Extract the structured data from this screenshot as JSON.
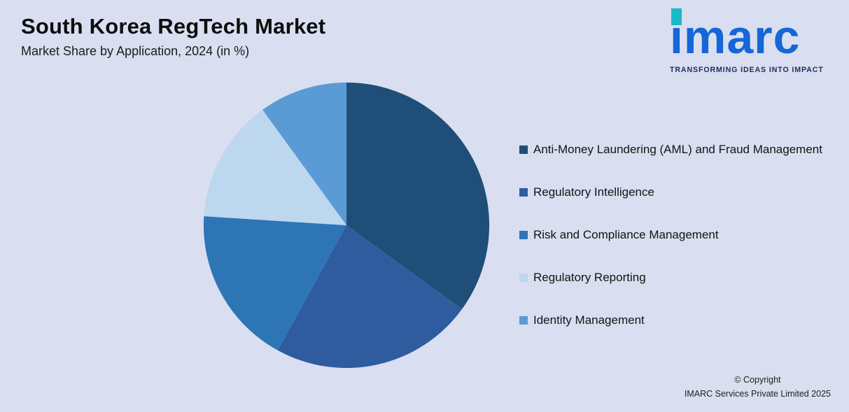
{
  "header": {
    "title": "South Korea RegTech Market",
    "subtitle": "Market Share by Application, 2024 (in %)"
  },
  "logo": {
    "text": "imarc",
    "tagline": "TRANSFORMING IDEAS INTO IMPACT",
    "brand_blue": "#1566d6",
    "brand_teal": "#1cb8c8",
    "tagline_color": "#1b2d5e"
  },
  "chart_data": {
    "type": "pie",
    "title": "South Korea RegTech Market",
    "subtitle": "Market Share by Application, 2024 (in %)",
    "categories": [
      "Anti-Money Laundering (AML) and Fraud Management",
      "Regulatory Intelligence",
      "Risk and Compliance Management",
      "Regulatory Reporting",
      "Identity Management"
    ],
    "values": [
      35,
      23,
      18,
      14,
      10
    ],
    "colors": [
      "#1F4E79",
      "#2E5C9F",
      "#2E75B6",
      "#BDD7EE",
      "#5B9BD5"
    ],
    "start_angle_deg": 0,
    "direction": "clockwise",
    "legend_position": "right",
    "legend_marker": "square",
    "value_labels_shown": false,
    "background_color": "#d9def0"
  },
  "footer": {
    "line1": "© Copyright",
    "line2": "IMARC Services Private Limited 2025"
  }
}
